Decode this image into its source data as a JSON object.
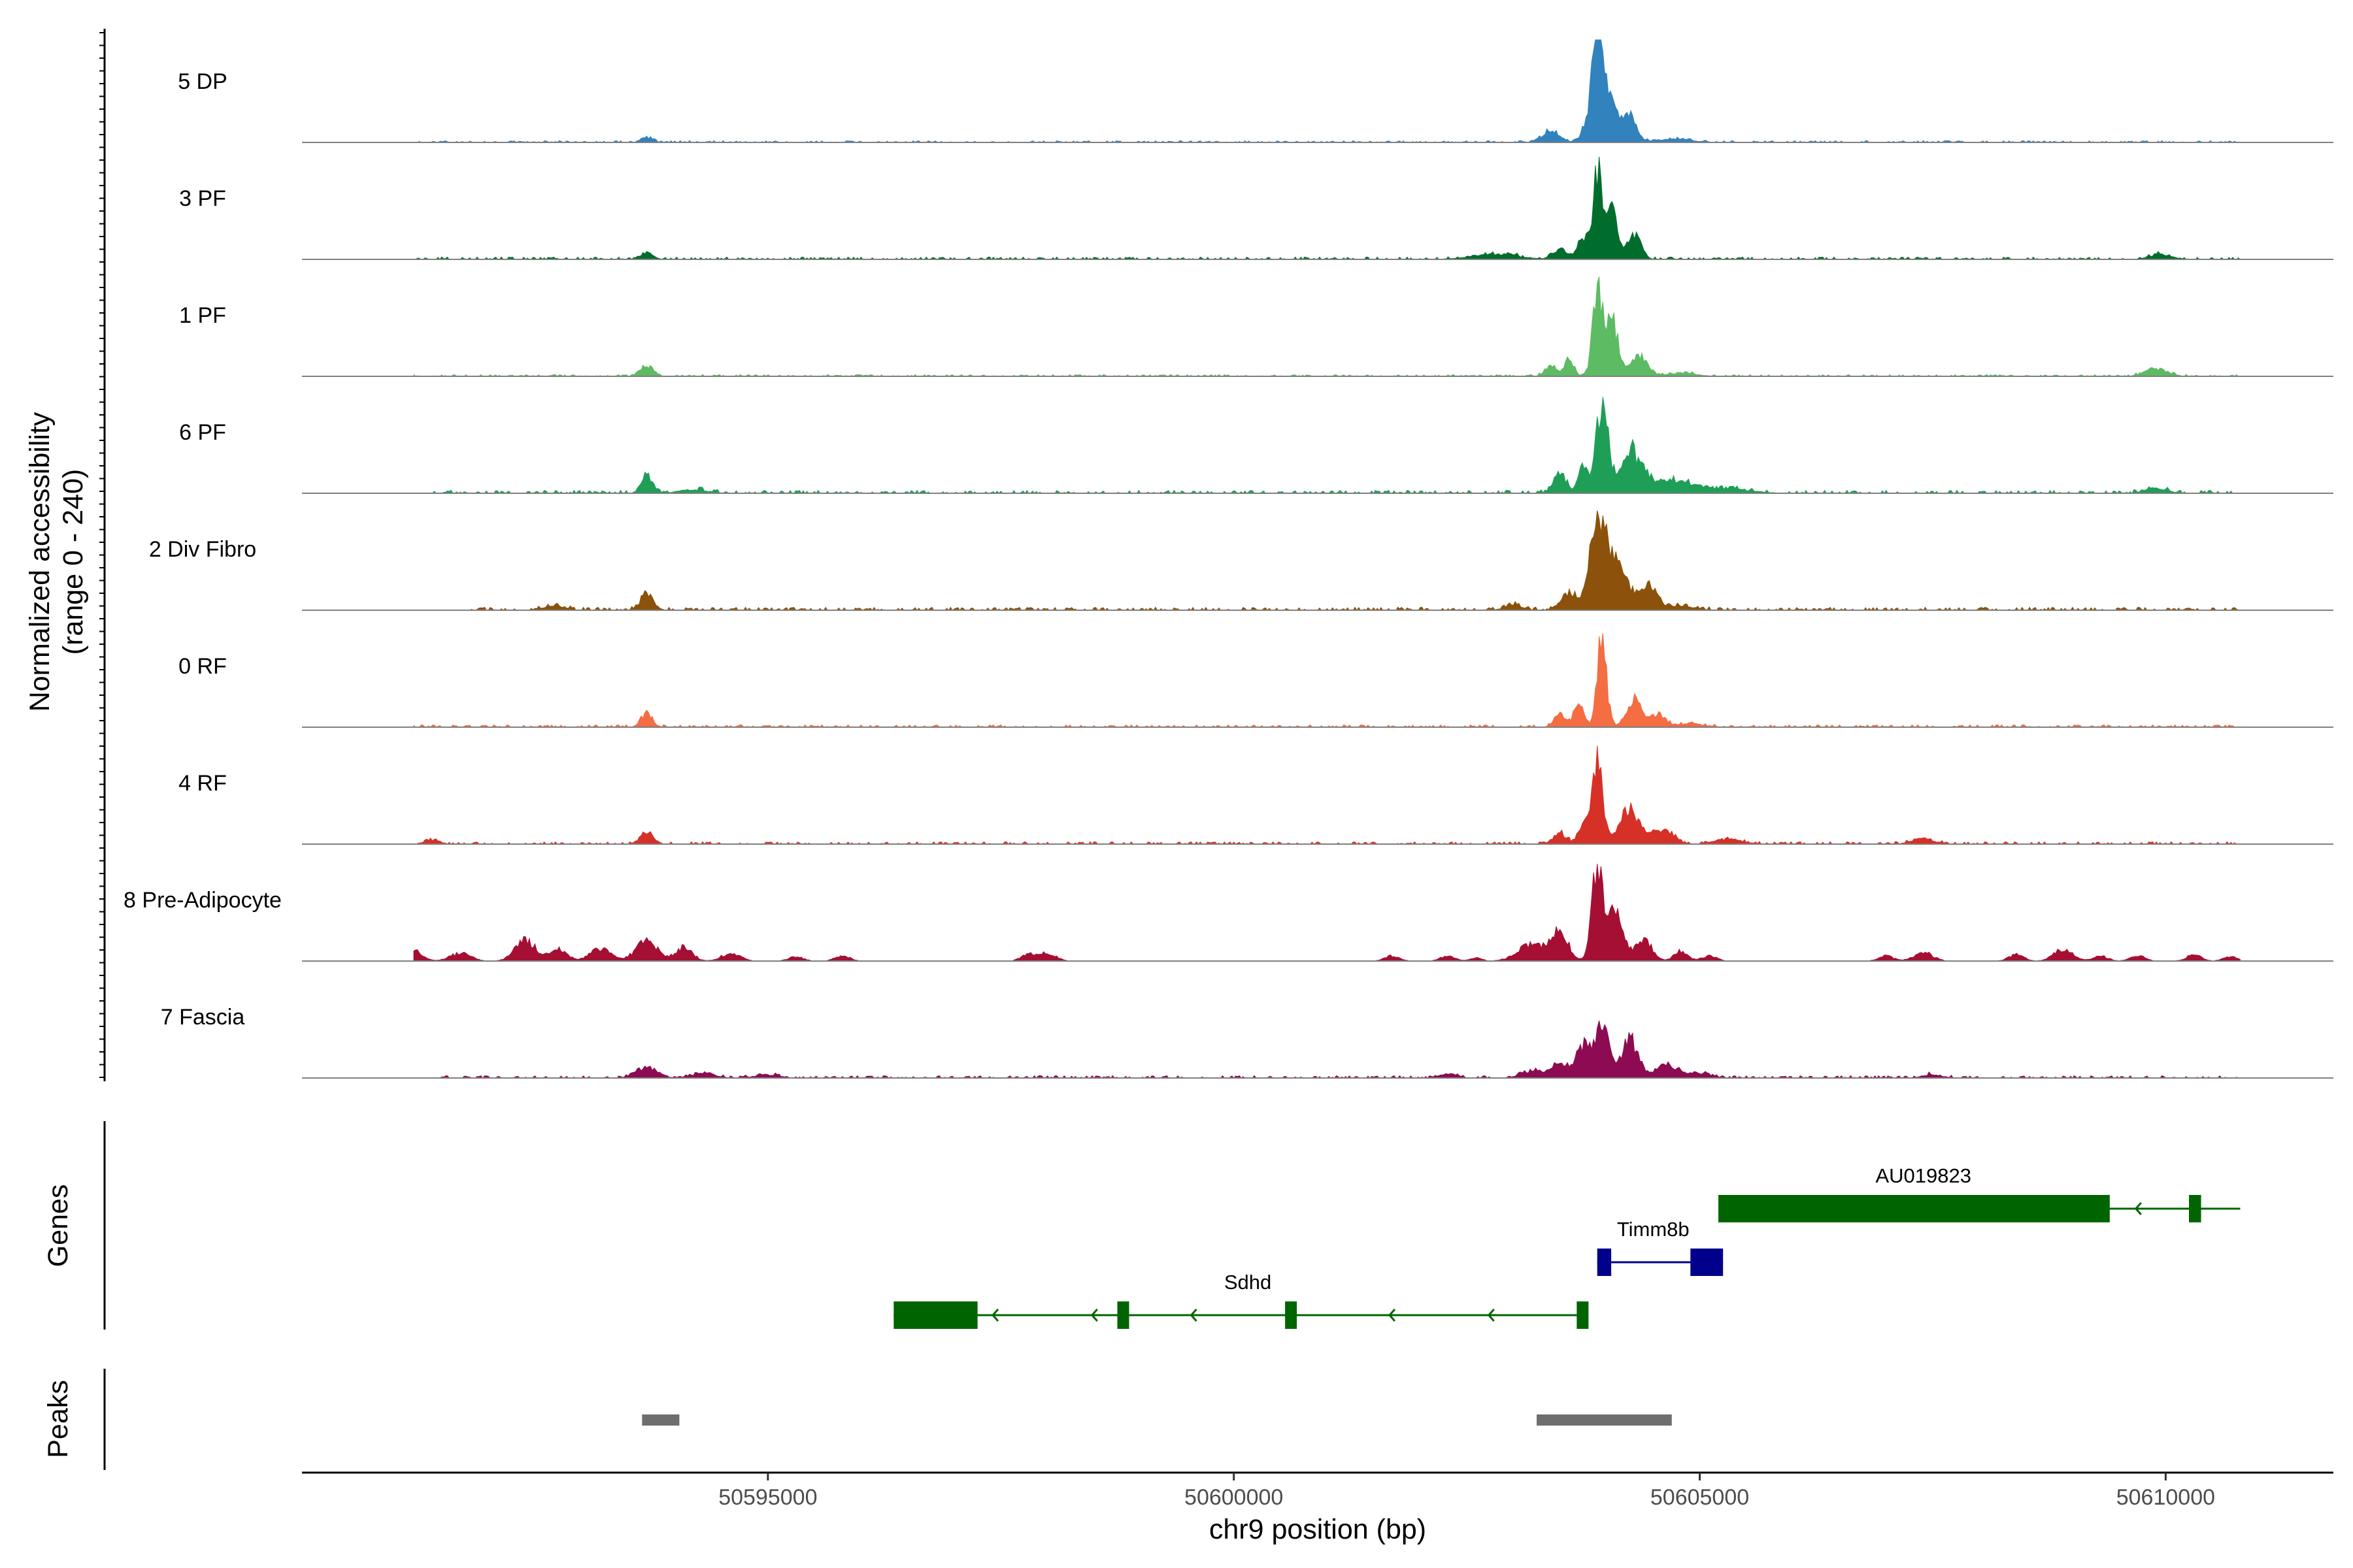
{
  "chart_data": {
    "type": "area",
    "subtype": "genome-coverage-track",
    "chromosome": "chr9",
    "xlim": [
      50590000,
      50611800
    ],
    "ylim": [
      0,
      240
    ],
    "grid": false,
    "legend": "none",
    "xlabel": "chr9 position (bp)",
    "ylabel": "Normalized accessibility",
    "ylabel_sub": "(range 0 - 240)",
    "x_ticks": [
      50595000,
      50600000,
      50605000,
      50610000
    ],
    "x_tick_labels": [
      "50595000",
      "50600000",
      "50605000",
      "50610000"
    ],
    "tracks": [
      {
        "name": "5 DP",
        "color": "#3182BD",
        "bg": [
          [
            50591000,
            3
          ]
        ],
        "peaks": [
          [
            50593700,
            12,
            60
          ],
          [
            50603400,
            28,
            90
          ],
          [
            50603800,
            47,
            60
          ],
          [
            50603900,
            233,
            45
          ],
          [
            50604000,
            130,
            90
          ],
          [
            50604250,
            60,
            70
          ],
          [
            50604700,
            8,
            200
          ]
        ]
      },
      {
        "name": "3 PF",
        "color": "#006D2C",
        "bg": [
          [
            50590800,
            4
          ]
        ],
        "peaks": [
          [
            50593700,
            14,
            70
          ],
          [
            50602800,
            12,
            250
          ],
          [
            50603500,
            25,
            70
          ],
          [
            50603750,
            52,
            60
          ],
          [
            50603900,
            195,
            45
          ],
          [
            50604050,
            110,
            70
          ],
          [
            50604300,
            55,
            70
          ],
          [
            50609950,
            12,
            120
          ]
        ]
      },
      {
        "name": "1 PF",
        "color": "#5DBB63",
        "bg": [
          [
            50591200,
            3
          ]
        ],
        "peaks": [
          [
            50593700,
            25,
            70
          ],
          [
            50603400,
            25,
            60
          ],
          [
            50603600,
            40,
            50
          ],
          [
            50603900,
            190,
            50
          ],
          [
            50604050,
            130,
            70
          ],
          [
            50604350,
            45,
            90
          ],
          [
            50604800,
            8,
            150
          ],
          [
            50609900,
            18,
            120
          ]
        ]
      },
      {
        "name": "6 PF",
        "color": "#1F9E57",
        "bg": [
          [
            50591400,
            5
          ],
          [
            50597300,
            4
          ],
          [
            50608000,
            4
          ]
        ],
        "peaks": [
          [
            50593700,
            40,
            60
          ],
          [
            50594200,
            8,
            150
          ],
          [
            50603500,
            45,
            70
          ],
          [
            50603750,
            70,
            50
          ],
          [
            50603950,
            220,
            60
          ],
          [
            50604250,
            95,
            120
          ],
          [
            50604700,
            30,
            220
          ],
          [
            50605300,
            10,
            250
          ],
          [
            50609900,
            12,
            120
          ]
        ]
      },
      {
        "name": "2 Div Fibro",
        "color": "#8C510A",
        "bg": [
          [
            50591800,
            5
          ],
          [
            50598300,
            5
          ],
          [
            50606200,
            5
          ]
        ],
        "peaks": [
          [
            50592700,
            10,
            120
          ],
          [
            50593700,
            35,
            70
          ],
          [
            50603000,
            12,
            90
          ],
          [
            50603600,
            40,
            90
          ],
          [
            50603900,
            190,
            80
          ],
          [
            50604100,
            120,
            120
          ],
          [
            50604450,
            55,
            90
          ],
          [
            50604800,
            10,
            150
          ]
        ]
      },
      {
        "name": "0 RF",
        "color": "#F46D43",
        "bg": [
          [
            50591200,
            4
          ],
          [
            50597000,
            4
          ]
        ],
        "peaks": [
          [
            50593700,
            35,
            60
          ],
          [
            50603500,
            30,
            60
          ],
          [
            50603700,
            55,
            50
          ],
          [
            50603950,
            205,
            50
          ],
          [
            50604300,
            70,
            80
          ],
          [
            50604550,
            30,
            80
          ],
          [
            50604900,
            8,
            150
          ]
        ]
      },
      {
        "name": "4 RF",
        "color": "#D73027",
        "bg": [
          [
            50591300,
            4
          ],
          [
            50597500,
            4
          ],
          [
            50607000,
            4
          ]
        ],
        "peaks": [
          [
            50591400,
            10,
            80
          ],
          [
            50593700,
            28,
            70
          ],
          [
            50603500,
            25,
            70
          ],
          [
            50603750,
            40,
            50
          ],
          [
            50603900,
            190,
            60
          ],
          [
            50604250,
            85,
            100
          ],
          [
            50604600,
            35,
            110
          ],
          [
            50605300,
            12,
            150
          ],
          [
            50607400,
            12,
            120
          ]
        ]
      },
      {
        "name": "8 Pre-Adipocyte",
        "color": "#A50F33",
        "bg": [],
        "peaks": [
          [
            50591200,
            25,
            90
          ],
          [
            50591700,
            18,
            110
          ],
          [
            50592400,
            50,
            110
          ],
          [
            50592750,
            30,
            90
          ],
          [
            50593200,
            28,
            110
          ],
          [
            50593700,
            45,
            120
          ],
          [
            50594100,
            32,
            90
          ],
          [
            50594600,
            18,
            100
          ],
          [
            50595300,
            10,
            80
          ],
          [
            50595800,
            12,
            80
          ],
          [
            50597800,
            15,
            80
          ],
          [
            50598000,
            18,
            90
          ],
          [
            50601700,
            12,
            80
          ],
          [
            50602300,
            12,
            80
          ],
          [
            50602600,
            8,
            60
          ],
          [
            50603200,
            40,
            150
          ],
          [
            50603500,
            65,
            90
          ],
          [
            50603900,
            215,
            60
          ],
          [
            50604100,
            120,
            80
          ],
          [
            50604400,
            50,
            90
          ],
          [
            50604800,
            25,
            70
          ],
          [
            50605100,
            12,
            80
          ],
          [
            50607000,
            12,
            80
          ],
          [
            50607400,
            20,
            100
          ],
          [
            50608400,
            15,
            80
          ],
          [
            50608900,
            28,
            100
          ],
          [
            50609300,
            12,
            80
          ],
          [
            50609700,
            12,
            80
          ],
          [
            50610300,
            14,
            80
          ],
          [
            50610700,
            10,
            80
          ]
        ]
      },
      {
        "name": "7 Fascia",
        "color": "#8C0B52",
        "bg": [
          [
            50591500,
            4
          ],
          [
            50596800,
            4
          ],
          [
            50601000,
            4
          ],
          [
            50606500,
            4
          ]
        ],
        "peaks": [
          [
            50593700,
            25,
            110
          ],
          [
            50594300,
            10,
            130
          ],
          [
            50595000,
            8,
            120
          ],
          [
            50602300,
            10,
            100
          ],
          [
            50603200,
            15,
            120
          ],
          [
            50603500,
            35,
            90
          ],
          [
            50603750,
            75,
            70
          ],
          [
            50603950,
            140,
            70
          ],
          [
            50604250,
            85,
            90
          ],
          [
            50604650,
            30,
            120
          ],
          [
            50605000,
            10,
            130
          ],
          [
            50607500,
            8,
            100
          ]
        ]
      }
    ],
    "genes": [
      {
        "name": "AU019823",
        "strand": "-",
        "color": "#006400",
        "start": 50605200,
        "end": 50610800,
        "exons": [
          [
            50605200,
            50609400
          ],
          [
            50610250,
            50610380
          ]
        ]
      },
      {
        "name": "Timm8b",
        "strand": "+",
        "color": "#00008B",
        "start": 50603900,
        "end": 50605250,
        "exons": [
          [
            50603900,
            50604050
          ],
          [
            50604900,
            50605250
          ]
        ]
      },
      {
        "name": "Sdhd",
        "strand": "-",
        "color": "#006400",
        "start": 50596350,
        "end": 50603800,
        "exons": [
          [
            50596350,
            50597250
          ],
          [
            50598750,
            50598870
          ],
          [
            50600550,
            50600670
          ],
          [
            50603680,
            50603800
          ]
        ]
      }
    ],
    "peaks_regions": [
      [
        50593650,
        50594050
      ],
      [
        50603250,
        50604700
      ]
    ]
  },
  "panels": {
    "genes_label": "Genes",
    "peaks_label": "Peaks"
  }
}
